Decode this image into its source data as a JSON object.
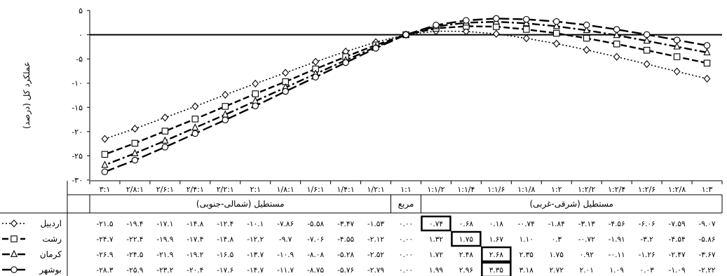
{
  "chart_data": {
    "type": "line",
    "ylabel": "عملکرد کل (درصد)",
    "ylim": [
      -30,
      5
    ],
    "yticks": [
      5,
      0,
      -5,
      -10,
      -15,
      -20,
      -25,
      -30
    ],
    "ytick_labels": [
      "۵",
      "۰",
      "-۵",
      "-۱۰",
      "-۱۵",
      "-۲۰",
      "-۲۵",
      "-۳۰"
    ],
    "categories": [
      "۱:۳",
      "۱:۲/۸",
      "۱:۲/۶",
      "۱:۲/۴",
      "۱:۲/۲",
      "۱:۲",
      "۱:۱/۸",
      "۱:۱/۶",
      "۱:۱/۴",
      "۱:۱/۲",
      "۱:۱",
      "۱/۲:۱",
      "۱/۴:۱",
      "۱/۶:۱",
      "۱/۸:۱",
      "۲:۱",
      "۲/۲:۱",
      "۲/۴:۱",
      "۲/۶:۱",
      "۲/۸:۱",
      "۳:۱"
    ],
    "groups": [
      {
        "label": "مستطیل (شرقی-غربی)",
        "span": [
          0,
          9
        ]
      },
      {
        "label": "مربع",
        "span": [
          10,
          10
        ]
      },
      {
        "label": "مستطیل (شمالی-جنوبی)",
        "span": [
          11,
          20
        ]
      }
    ],
    "series": [
      {
        "name": "اردبیل",
        "marker": "diamond",
        "dash": "dotted",
        "values": [
          -9.07,
          -7.59,
          -6.06,
          -4.56,
          -3.13,
          -1.84,
          -0.74,
          0.18,
          0.68,
          0.74,
          0.0,
          -1.53,
          -3.47,
          -5.58,
          -7.86,
          -10.1,
          -12.4,
          -14.8,
          -17.1,
          -19.4,
          -21.5
        ],
        "labels": [
          "-۹.۰۷",
          "-۷.۵۹",
          "-۶.۰۶",
          "-۴.۵۶",
          "-۳.۱۳",
          "-۱.۸۴",
          "-۰.۷۴",
          "۰.۱۸",
          "۰.۶۸",
          "۰.۷۴",
          "۰.۰۰",
          "-۱.۵۳",
          "-۳.۴۷",
          "-۵.۵۸",
          "-۷.۸۶",
          "-۱۰.۱",
          "-۱۲.۴",
          "-۱۴.۸",
          "-۱۷.۱",
          "-۱۹.۴",
          "-۲۱.۵"
        ],
        "max_index": 9
      },
      {
        "name": "رشت",
        "marker": "square",
        "dash": "dashed",
        "values": [
          -5.86,
          -4.54,
          -3.2,
          -1.91,
          -0.72,
          0.3,
          1.1,
          1.67,
          1.75,
          1.32,
          0.0,
          -2.12,
          -4.55,
          -7.06,
          -9.7,
          -12.2,
          -14.8,
          -17.4,
          -19.9,
          -22.4,
          -24.7
        ],
        "labels": [
          "-۵.۸۶",
          "-۴.۵۴",
          "-۳.۲",
          "-۱.۹۱",
          "-۰.۷۲",
          "۰.۳",
          "۱.۱۰",
          "۱.۶۷",
          "۱.۷۵",
          "۱.۳۲",
          "۰.۰۰",
          "-۲.۱۲",
          "-۴.۵۵",
          "-۷.۰۶",
          "-۹.۷",
          "-۱۲.۲",
          "-۱۴.۸",
          "-۱۷.۴",
          "-۱۹.۹",
          "-۲۲.۴",
          "-۲۴.۷"
        ],
        "max_index": 8
      },
      {
        "name": "کرمان",
        "marker": "triangle",
        "dash": "dashdot",
        "values": [
          -3.67,
          -2.47,
          -1.26,
          -0.11,
          0.92,
          1.75,
          2.35,
          2.68,
          2.48,
          1.72,
          0.0,
          -2.52,
          -5.28,
          -8.08,
          -10.9,
          -13.7,
          -16.5,
          -19.2,
          -21.9,
          -24.5,
          -26.9
        ],
        "labels": [
          "-۳.۶۷",
          "-۲.۴۷",
          "-۱.۲۶",
          "-۰.۱۱",
          "۰.۹۲",
          "۱.۷۵",
          "۲.۳۵",
          "۲.۶۸",
          "۲.۴۸",
          "۱.۷۲",
          "۰.۰۰",
          "-۲.۵۲",
          "-۵.۲۸",
          "-۸.۰۸",
          "-۱۰.۹",
          "-۱۳.۷",
          "-۱۶.۵",
          "-۱۹.۲",
          "-۲۱.۹",
          "-۲۴.۵",
          "-۲۶.۹"
        ],
        "max_index": 7
      },
      {
        "name": "بوشهر",
        "marker": "circle",
        "dash": "longdash",
        "values": [
          -2.22,
          -1.09,
          0.03,
          1.09,
          2.01,
          2.72,
          3.18,
          3.35,
          2.96,
          1.99,
          0.0,
          -2.79,
          -5.76,
          -8.75,
          -11.7,
          -14.7,
          -17.6,
          -20.4,
          -23.2,
          -25.9,
          -28.3
        ],
        "labels": [
          "-۲.۲۲",
          "-۱.۰۹",
          "۰.۰۳",
          "۱.۰۹",
          "۲.۰۱",
          "۲.۷۲",
          "۳.۱۸",
          "۳.۳۵",
          "۲.۹۶",
          "۱.۹۹",
          "۰.۰۰",
          "-۲.۷۹",
          "-۵.۷۶",
          "-۸.۷۵",
          "-۱۱.۷",
          "-۱۴.۷",
          "-۱۷.۶",
          "-۲۰.۴",
          "-۲۳.۲",
          "-۲۵.۹",
          "-۲۸.۳"
        ],
        "max_index": 7
      }
    ],
    "grid": false,
    "legend": "table rows below chart"
  }
}
